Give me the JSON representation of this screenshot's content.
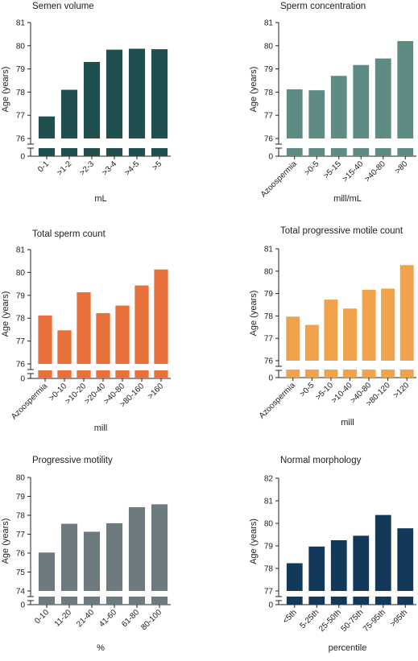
{
  "chart_data": [
    {
      "type": "bar",
      "title": "Semen volume",
      "ylabel": "Age (years)",
      "xlabel": "mL",
      "categories": [
        "0-1",
        ">1-2",
        ">2-3",
        ">3-4",
        ">4-5",
        ">5"
      ],
      "values": [
        76.95,
        78.1,
        79.3,
        79.83,
        79.87,
        79.85
      ],
      "ylim": [
        76,
        81
      ],
      "yticks": [
        "81",
        "80",
        "79",
        "78",
        "77",
        "76"
      ],
      "zero_tick": "0",
      "color": "#1f4f4f"
    },
    {
      "type": "bar",
      "title": "Sperm concentration",
      "ylabel": "Age (years)",
      "xlabel": "mill/mL",
      "categories": [
        "Azoospermia",
        ">0-5",
        ">5-15",
        ">15-40",
        ">40-80",
        ">80"
      ],
      "values": [
        78.12,
        78.08,
        78.7,
        79.17,
        79.45,
        80.2
      ],
      "ylim": [
        76,
        81
      ],
      "yticks": [
        "81",
        "80",
        "79",
        "78",
        "77",
        "76"
      ],
      "zero_tick": "0",
      "color": "#5e8c85"
    },
    {
      "type": "bar",
      "title": "Total sperm count",
      "ylabel": "Age (years)",
      "xlabel": "mill",
      "categories": [
        "Azoospermia",
        ">0-10",
        ">10-20",
        ">20-40",
        ">40-80",
        ">80-160",
        ">160"
      ],
      "values": [
        78.12,
        77.47,
        79.13,
        78.22,
        78.55,
        79.43,
        80.13
      ],
      "ylim": [
        76,
        81
      ],
      "yticks": [
        "81",
        "80",
        "79",
        "78",
        "77",
        "76"
      ],
      "zero_tick": "0",
      "color": "#e8703a"
    },
    {
      "type": "bar",
      "title": "Total progressive motile count",
      "ylabel": "Age (years)",
      "xlabel": "mill",
      "categories": [
        "Azoospermia",
        ">0-5",
        ">5-10",
        ">10-40",
        ">40-80",
        ">80-120",
        ">120"
      ],
      "values": [
        77.97,
        77.6,
        78.73,
        78.33,
        79.17,
        79.22,
        80.27
      ],
      "ylim": [
        76,
        81
      ],
      "yticks": [
        "81",
        "80",
        "79",
        "78",
        "77",
        "76"
      ],
      "zero_tick": "0",
      "color": "#f0a24c"
    },
    {
      "type": "bar",
      "title": "Progressive motility",
      "ylabel": "Age (years)",
      "xlabel": "%",
      "categories": [
        "0-10",
        "11-20",
        "21-40",
        "41-60",
        "61-80",
        "80-100"
      ],
      "values": [
        76.03,
        77.55,
        77.13,
        77.58,
        78.43,
        78.58
      ],
      "ylim": [
        74,
        80
      ],
      "yticks": [
        "80",
        "79",
        "78",
        "77",
        "76",
        "75",
        "74"
      ],
      "zero_tick": "0",
      "color": "#6d7a7e"
    },
    {
      "type": "bar",
      "title": "Normal morphology",
      "ylabel": "Age (years)",
      "xlabel": "percentile",
      "categories": [
        "<5th",
        "5-25th",
        "25-50th",
        "50-75th",
        "75-95th",
        ">95th"
      ],
      "values": [
        78.23,
        78.97,
        79.25,
        79.45,
        80.37,
        79.78
      ],
      "ylim": [
        77,
        82
      ],
      "yticks": [
        "82",
        "81",
        "80",
        "79",
        "78",
        "77"
      ],
      "zero_tick": "0",
      "color": "#12395a"
    }
  ]
}
